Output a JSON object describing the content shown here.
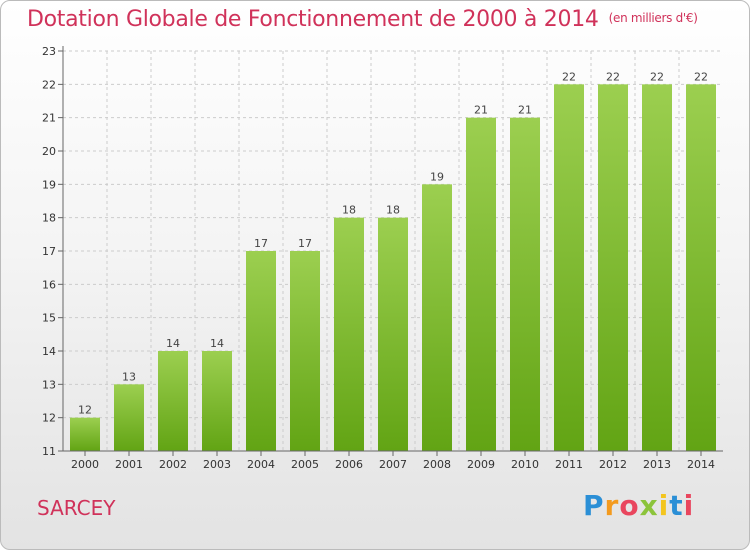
{
  "header": {
    "title": "Dotation Globale de Fonctionnement de 2000 à 2014",
    "subtitle": "(en milliers d'€)"
  },
  "footer": {
    "commune": "SARCEY",
    "logo_letters": [
      {
        "ch": "P",
        "color": "#2b8fd6"
      },
      {
        "ch": "r",
        "color": "#f39a1e"
      },
      {
        "ch": "o",
        "color": "#e9465e"
      },
      {
        "ch": "x",
        "color": "#8cc43b"
      },
      {
        "ch": "i",
        "color": "#f3c51e"
      },
      {
        "ch": "t",
        "color": "#2b8fd6"
      },
      {
        "ch": "i",
        "color": "#e9465e"
      }
    ]
  },
  "chart_data": {
    "type": "bar",
    "categories": [
      "2000",
      "2001",
      "2002",
      "2003",
      "2004",
      "2005",
      "2006",
      "2007",
      "2008",
      "2009",
      "2010",
      "2011",
      "2012",
      "2013",
      "2014"
    ],
    "values": [
      12,
      13,
      14,
      14,
      17,
      17,
      18,
      18,
      19,
      21,
      21,
      22,
      22,
      22,
      22
    ],
    "ylim": [
      11,
      23
    ],
    "yticks": [
      11,
      12,
      13,
      14,
      15,
      16,
      17,
      18,
      19,
      20,
      21,
      22,
      23
    ],
    "grid": true,
    "colors": {
      "bar_top": "#9ccf50",
      "bar_bottom": "#62a414",
      "grid": "#cccccc",
      "axis": "#666666"
    }
  }
}
